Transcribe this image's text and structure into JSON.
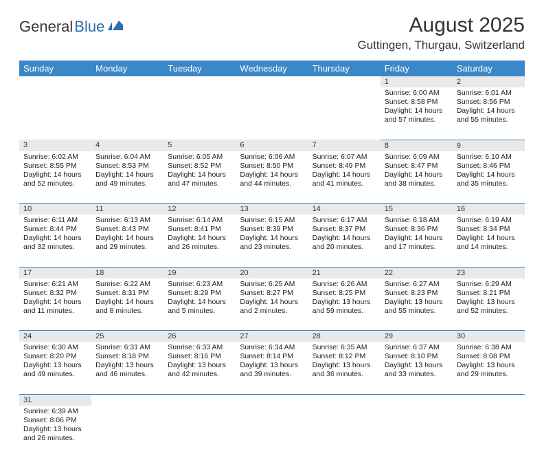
{
  "logo": {
    "text1": "General",
    "text2": "Blue"
  },
  "title": "August 2025",
  "location": "Guttingen, Thurgau, Switzerland",
  "colors": {
    "header_bg": "#3b87c8",
    "header_text": "#ffffff",
    "daynum_bg": "#e9e9e9",
    "border": "#3b87c8",
    "body_text": "#222222",
    "logo_gray": "#3a3a3a",
    "logo_blue": "#2f6fad"
  },
  "dayHeaders": [
    "Sunday",
    "Monday",
    "Tuesday",
    "Wednesday",
    "Thursday",
    "Friday",
    "Saturday"
  ],
  "weeks": [
    [
      null,
      null,
      null,
      null,
      null,
      {
        "n": "1",
        "sr": "6:00 AM",
        "ss": "8:58 PM",
        "dl": "14 hours and 57 minutes."
      },
      {
        "n": "2",
        "sr": "6:01 AM",
        "ss": "8:56 PM",
        "dl": "14 hours and 55 minutes."
      }
    ],
    [
      {
        "n": "3",
        "sr": "6:02 AM",
        "ss": "8:55 PM",
        "dl": "14 hours and 52 minutes."
      },
      {
        "n": "4",
        "sr": "6:04 AM",
        "ss": "8:53 PM",
        "dl": "14 hours and 49 minutes."
      },
      {
        "n": "5",
        "sr": "6:05 AM",
        "ss": "8:52 PM",
        "dl": "14 hours and 47 minutes."
      },
      {
        "n": "6",
        "sr": "6:06 AM",
        "ss": "8:50 PM",
        "dl": "14 hours and 44 minutes."
      },
      {
        "n": "7",
        "sr": "6:07 AM",
        "ss": "8:49 PM",
        "dl": "14 hours and 41 minutes."
      },
      {
        "n": "8",
        "sr": "6:09 AM",
        "ss": "8:47 PM",
        "dl": "14 hours and 38 minutes."
      },
      {
        "n": "9",
        "sr": "6:10 AM",
        "ss": "8:46 PM",
        "dl": "14 hours and 35 minutes."
      }
    ],
    [
      {
        "n": "10",
        "sr": "6:11 AM",
        "ss": "8:44 PM",
        "dl": "14 hours and 32 minutes."
      },
      {
        "n": "11",
        "sr": "6:13 AM",
        "ss": "8:43 PM",
        "dl": "14 hours and 29 minutes."
      },
      {
        "n": "12",
        "sr": "6:14 AM",
        "ss": "8:41 PM",
        "dl": "14 hours and 26 minutes."
      },
      {
        "n": "13",
        "sr": "6:15 AM",
        "ss": "8:39 PM",
        "dl": "14 hours and 23 minutes."
      },
      {
        "n": "14",
        "sr": "6:17 AM",
        "ss": "8:37 PM",
        "dl": "14 hours and 20 minutes."
      },
      {
        "n": "15",
        "sr": "6:18 AM",
        "ss": "8:36 PM",
        "dl": "14 hours and 17 minutes."
      },
      {
        "n": "16",
        "sr": "6:19 AM",
        "ss": "8:34 PM",
        "dl": "14 hours and 14 minutes."
      }
    ],
    [
      {
        "n": "17",
        "sr": "6:21 AM",
        "ss": "8:32 PM",
        "dl": "14 hours and 11 minutes."
      },
      {
        "n": "18",
        "sr": "6:22 AM",
        "ss": "8:31 PM",
        "dl": "14 hours and 8 minutes."
      },
      {
        "n": "19",
        "sr": "6:23 AM",
        "ss": "8:29 PM",
        "dl": "14 hours and 5 minutes."
      },
      {
        "n": "20",
        "sr": "6:25 AM",
        "ss": "8:27 PM",
        "dl": "14 hours and 2 minutes."
      },
      {
        "n": "21",
        "sr": "6:26 AM",
        "ss": "8:25 PM",
        "dl": "13 hours and 59 minutes."
      },
      {
        "n": "22",
        "sr": "6:27 AM",
        "ss": "8:23 PM",
        "dl": "13 hours and 55 minutes."
      },
      {
        "n": "23",
        "sr": "6:29 AM",
        "ss": "8:21 PM",
        "dl": "13 hours and 52 minutes."
      }
    ],
    [
      {
        "n": "24",
        "sr": "6:30 AM",
        "ss": "8:20 PM",
        "dl": "13 hours and 49 minutes."
      },
      {
        "n": "25",
        "sr": "6:31 AM",
        "ss": "8:18 PM",
        "dl": "13 hours and 46 minutes."
      },
      {
        "n": "26",
        "sr": "6:33 AM",
        "ss": "8:16 PM",
        "dl": "13 hours and 42 minutes."
      },
      {
        "n": "27",
        "sr": "6:34 AM",
        "ss": "8:14 PM",
        "dl": "13 hours and 39 minutes."
      },
      {
        "n": "28",
        "sr": "6:35 AM",
        "ss": "8:12 PM",
        "dl": "13 hours and 36 minutes."
      },
      {
        "n": "29",
        "sr": "6:37 AM",
        "ss": "8:10 PM",
        "dl": "13 hours and 33 minutes."
      },
      {
        "n": "30",
        "sr": "6:38 AM",
        "ss": "8:08 PM",
        "dl": "13 hours and 29 minutes."
      }
    ],
    [
      {
        "n": "31",
        "sr": "6:39 AM",
        "ss": "8:06 PM",
        "dl": "13 hours and 26 minutes."
      },
      null,
      null,
      null,
      null,
      null,
      null
    ]
  ],
  "labels": {
    "sunrise": "Sunrise: ",
    "sunset": "Sunset: ",
    "daylight": "Daylight: "
  }
}
